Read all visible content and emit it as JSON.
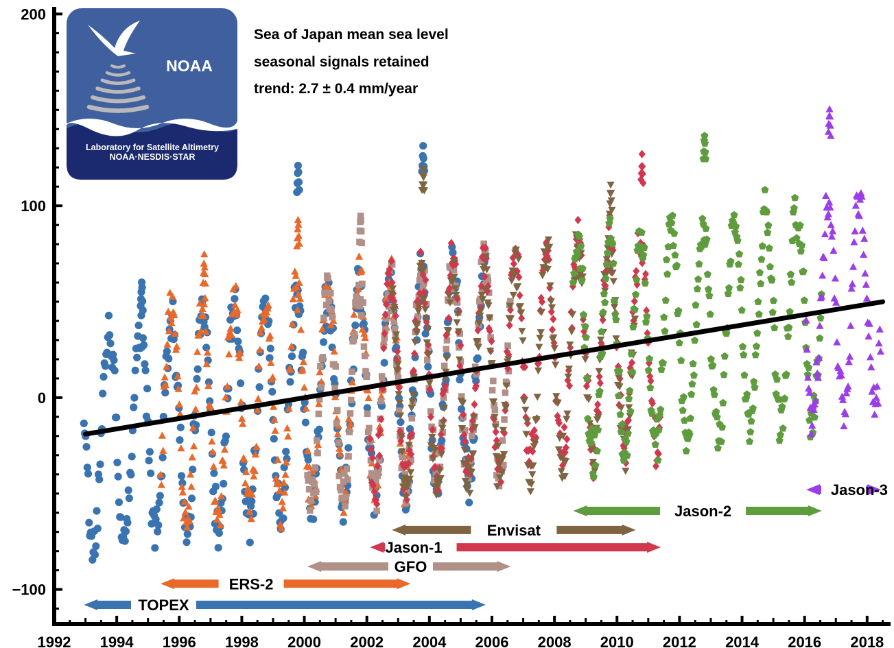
{
  "chart_data": {
    "type": "scatter",
    "title": "",
    "xlabel": "",
    "ylabel": "",
    "xlim": [
      1992,
      2018.75
    ],
    "ylim": [
      -118,
      203
    ],
    "xticks": [
      1992,
      1994,
      1996,
      1998,
      2000,
      2002,
      2004,
      2006,
      2008,
      2010,
      2012,
      2014,
      2016,
      2018
    ],
    "xtick_labels": [
      "1992",
      "1994",
      "1996",
      "1998",
      "2000",
      "2002",
      "2004",
      "2006",
      "2008",
      "2010",
      "2012",
      "2014",
      "2016",
      "2018"
    ],
    "yticks": [
      -100,
      0,
      100,
      200
    ],
    "ytick_labels": [
      "−100",
      "0",
      "100",
      "200"
    ],
    "grid": false,
    "legend": "none",
    "annotations": {
      "line1": "Sea of Japan mean sea level",
      "line2": "seasonal signals retained",
      "line3": "trend:  2.7 ± 0.4 mm/year"
    },
    "trend": {
      "x": [
        1993.0,
        2018.5
      ],
      "y": [
        -19,
        50
      ]
    },
    "seasonal": {
      "amplitude": 55,
      "phase_peak_fraction": 0.75
    },
    "series": [
      {
        "name": "TOPEX",
        "marker": "circle",
        "color": "#3a74b0",
        "start": 1992.95,
        "end": 2005.8,
        "bias": -3,
        "label_x": 1995.5,
        "bar_y": -108,
        "peaks": [
          [
            1994.8,
            62
          ],
          [
            1999.8,
            123
          ],
          [
            2003.8,
            132
          ]
        ]
      },
      {
        "name": "ERS-2",
        "marker": "triangle-up",
        "color": "#e8692a",
        "start": 1995.4,
        "end": 2003.4,
        "bias": 2,
        "label_x": 1998.3,
        "bar_y": -97,
        "peaks": [
          [
            1996.8,
            75
          ],
          [
            1999.8,
            95
          ]
        ]
      },
      {
        "name": "GFO",
        "marker": "square",
        "color": "#b09087",
        "start": 2000.1,
        "end": 2006.6,
        "bias": 0,
        "label_x": 2003.4,
        "bar_y": -88,
        "peaks": [
          [
            2001.8,
            97
          ]
        ]
      },
      {
        "name": "Jason-1",
        "marker": "diamond",
        "color": "#d1384e",
        "start": 2002.1,
        "end": 2011.4,
        "bias": 1,
        "label_x": 2003.5,
        "bar_y": -78,
        "peaks": [
          [
            2010.8,
            128
          ]
        ]
      },
      {
        "name": "Envisat",
        "marker": "triangle-down",
        "color": "#7e6440",
        "start": 2002.8,
        "end": 2010.6,
        "bias": -2,
        "label_x": 2006.7,
        "bar_y": -69,
        "peaks": [
          [
            2003.8,
            122
          ],
          [
            2009.8,
            112
          ]
        ]
      },
      {
        "name": "Jason-2",
        "marker": "pentagon",
        "color": "#5e9c3e",
        "start": 2008.6,
        "end": 2016.55,
        "bias": 0,
        "label_x": 2012.75,
        "bar_y": -59,
        "peaks": [
          [
            2012.8,
            139
          ]
        ]
      },
      {
        "name": "Jason-3",
        "marker": "triangle-up",
        "color": "#9b3de8",
        "start": 2016.05,
        "end": 2018.45,
        "bias": 3,
        "label_x": 2017.75,
        "bar_y": -48,
        "peaks": [
          [
            2016.8,
            152
          ]
        ]
      }
    ]
  },
  "logo": {
    "agency": "NOAA",
    "lab_line1": "Laboratory for Satellite Altimetry",
    "lab_line2": "NOAA·NESDIS·STAR",
    "bg_color": "#3f5f9e"
  }
}
